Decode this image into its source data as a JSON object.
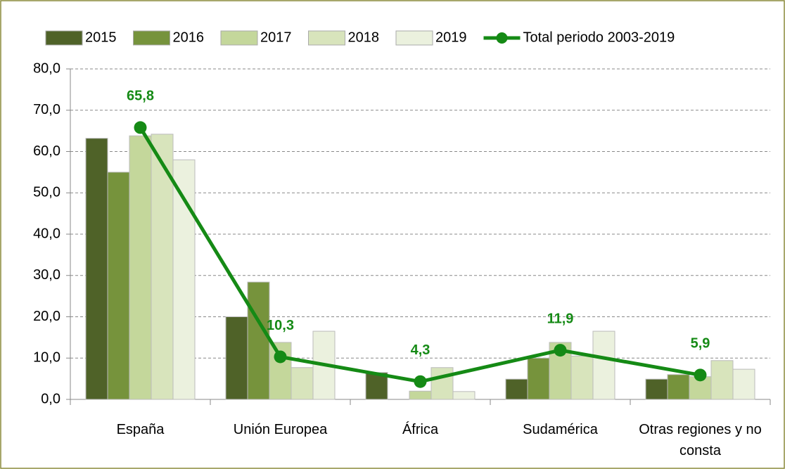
{
  "chart_data": {
    "type": "bar",
    "categories": [
      "España",
      "Unión Europea",
      "África",
      "Sudamérica",
      "Otras regiones y no consta"
    ],
    "series": [
      {
        "name": "2015",
        "color": "#4f6228",
        "values": [
          63.2,
          20.0,
          6.5,
          4.9,
          4.9
        ]
      },
      {
        "name": "2016",
        "color": "#76933c",
        "values": [
          55.0,
          28.4,
          0,
          10.0,
          6.0
        ]
      },
      {
        "name": "2017",
        "color": "#c4d79b",
        "values": [
          63.8,
          13.8,
          2.0,
          13.8,
          5.5
        ]
      },
      {
        "name": "2018",
        "color": "#d8e4bc",
        "values": [
          64.2,
          7.7,
          7.7,
          10.5,
          9.4
        ]
      },
      {
        "name": "2019",
        "color": "#ebf1de",
        "values": [
          58.0,
          16.5,
          1.9,
          16.5,
          7.3
        ]
      },
      {
        "name": "Total periodo 2003-2019",
        "type": "line",
        "color": "#158a15",
        "values": [
          65.8,
          10.3,
          4.3,
          11.9,
          5.9
        ],
        "value_labels": [
          "65,8",
          "10,3",
          "4,3",
          "11,9",
          "5,9"
        ]
      }
    ],
    "ylim": [
      0,
      80
    ],
    "yticks": [
      {
        "value": 0,
        "label": "0,0"
      },
      {
        "value": 10,
        "label": "10,0"
      },
      {
        "value": 20,
        "label": "20,0"
      },
      {
        "value": 30,
        "label": "30,0"
      },
      {
        "value": 40,
        "label": "40,0"
      },
      {
        "value": 50,
        "label": "50,0"
      },
      {
        "value": 60,
        "label": "60,0"
      },
      {
        "value": 70,
        "label": "70,0"
      },
      {
        "value": 80,
        "label": "80,0"
      }
    ],
    "grid": true,
    "legend": "top"
  }
}
